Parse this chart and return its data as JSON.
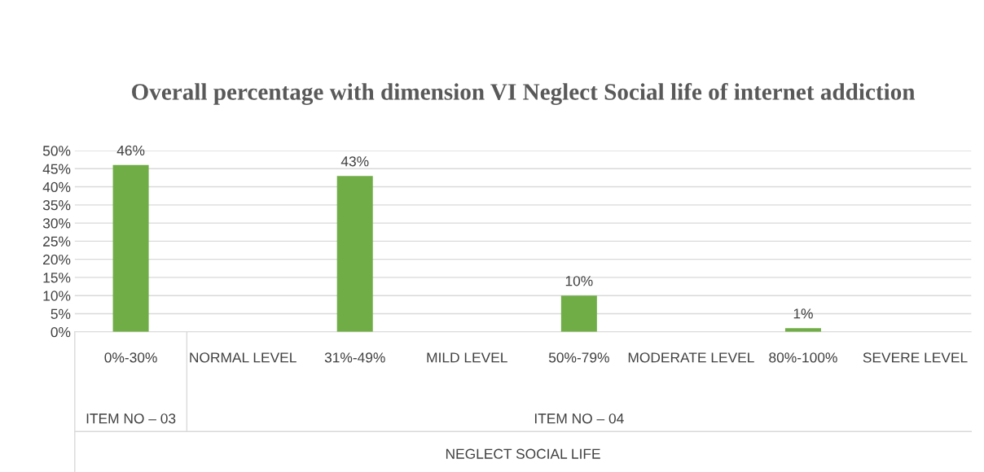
{
  "chart_data": {
    "type": "bar",
    "title": "Overall percentage with dimension VI Neglect Social life of internet addiction",
    "categories": [
      "0%-30%",
      "NORMAL LEVEL",
      "31%-49%",
      "MILD LEVEL",
      "50%-79%",
      "MODERATE LEVEL",
      "80%-100%",
      "SEVERE LEVEL"
    ],
    "values": [
      46,
      null,
      43,
      null,
      10,
      null,
      1,
      null
    ],
    "value_labels": [
      "46%",
      null,
      "43%",
      null,
      "10%",
      null,
      "1%",
      null
    ],
    "color": "#70ad47",
    "annotations": [
      "ITEM NO – 03",
      "ITEM NO – 04",
      "NEGLECT SOCIAL LIFE"
    ],
    "ylim": [
      0,
      50
    ],
    "yticks": [
      {
        "value": 0,
        "label": "0%"
      },
      {
        "value": 5,
        "label": "5%"
      },
      {
        "value": 10,
        "label": "10%"
      },
      {
        "value": 15,
        "label": "15%"
      },
      {
        "value": 20,
        "label": "20%"
      },
      {
        "value": 25,
        "label": "25%"
      },
      {
        "value": 30,
        "label": "30%"
      },
      {
        "value": 35,
        "label": "35%"
      },
      {
        "value": 40,
        "label": "40%"
      },
      {
        "value": 45,
        "label": "45%"
      },
      {
        "value": 50,
        "label": "50%"
      }
    ],
    "grid": "y",
    "legend": false
  }
}
